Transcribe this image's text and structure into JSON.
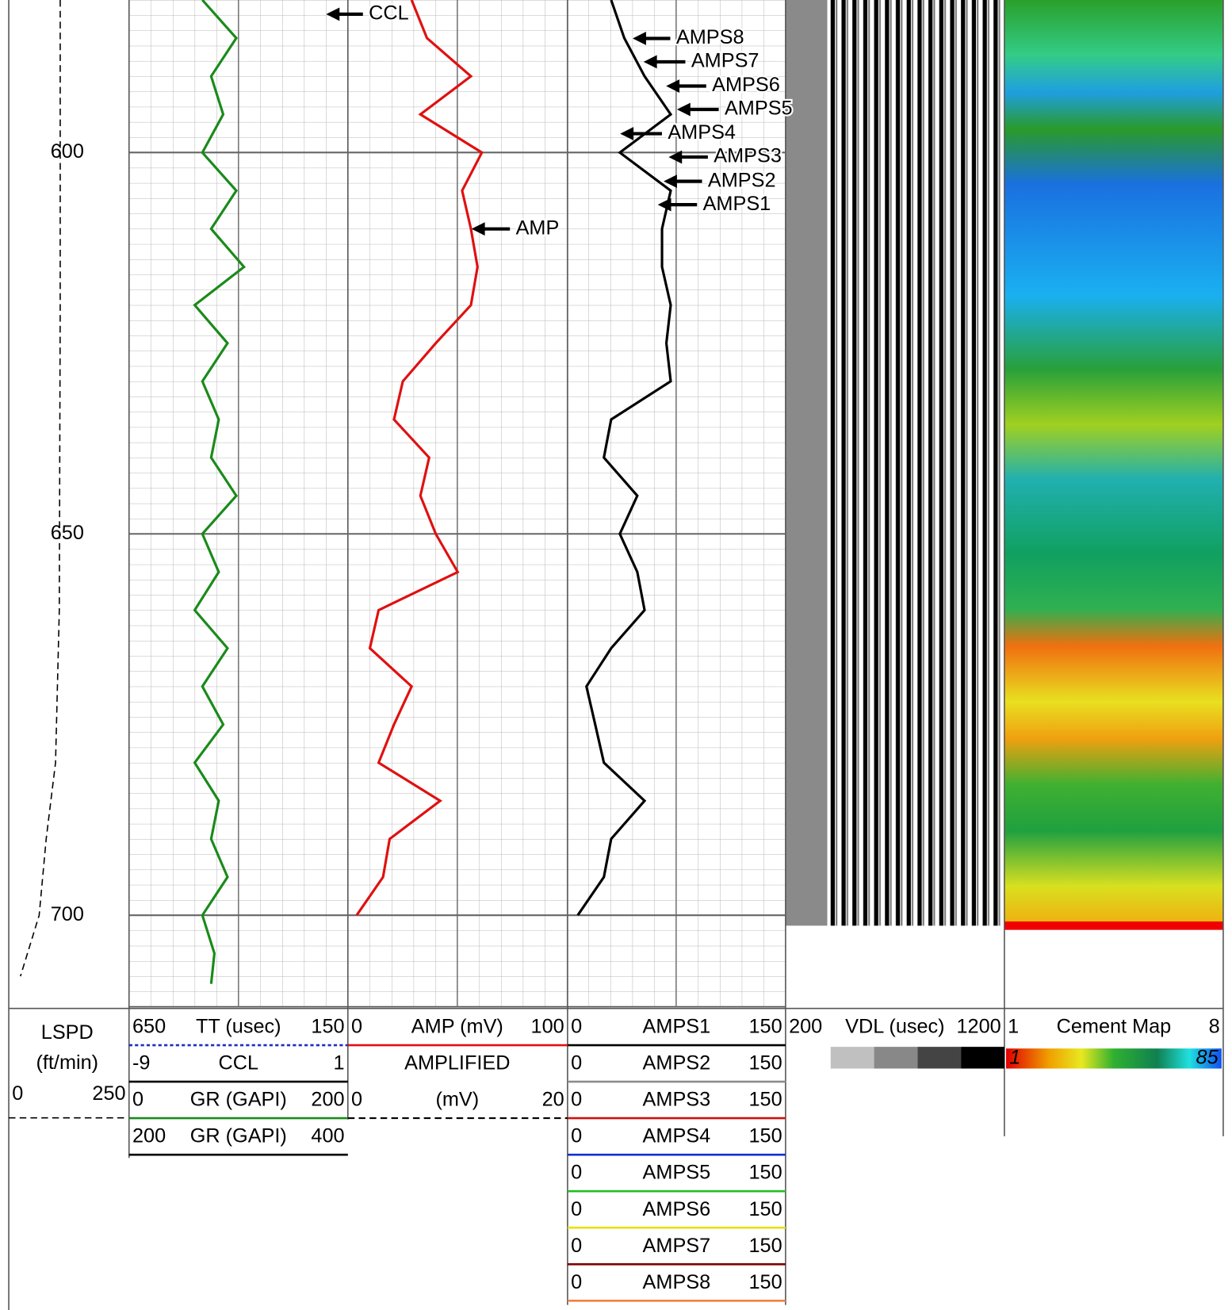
{
  "chart_data": {
    "type": "well-log",
    "depth": {
      "ylim": [
        580,
        712
      ],
      "yticks": [
        600,
        650,
        700
      ]
    },
    "tracks": [
      {
        "scales": [
          {
            "label": "LSPD",
            "unit": "(ft/min)",
            "xlim": [
              0,
              250
            ],
            "color": "#000000",
            "dash": true,
            "depths": [
              580,
              620,
              660,
              680,
              690,
              700,
              708
            ],
            "values": [
              110,
              110,
              108,
              100,
              80,
              65,
              25
            ]
          }
        ]
      },
      {
        "scales": [
          {
            "label": "TT (usec)",
            "xlim": [
              650,
              150
            ],
            "color": "#1f2fbf",
            "dash": true
          },
          {
            "label": "CCL",
            "xlim": [
              -9,
              1
            ],
            "color": "#000000"
          },
          {
            "label": "GR (GAPI)",
            "xlim": [
              0,
              200
            ],
            "color": "#1a8a1a",
            "depths": [
              580,
              585,
              590,
              595,
              600,
              605,
              610,
              615,
              620,
              625,
              630,
              635,
              640,
              645,
              650,
              655,
              660,
              665,
              670,
              675,
              680,
              685,
              690,
              695,
              700,
              705,
              709
            ],
            "values": [
              67,
              98,
              75,
              86,
              67,
              98,
              75,
              105,
              60,
              90,
              67,
              82,
              75,
              98,
              67,
              82,
              60,
              90,
              67,
              86,
              60,
              82,
              75,
              90,
              67,
              78,
              75
            ]
          },
          {
            "label": "GR (GAPI)",
            "xlim": [
              200,
              400
            ],
            "color": "#000000"
          }
        ]
      },
      {
        "scales": [
          {
            "label": "AMP (mV)",
            "xlim": [
              0,
              100
            ],
            "color": "#e01010",
            "depths": [
              580,
              585,
              590,
              595,
              600,
              605,
              610,
              615,
              620,
              625,
              630,
              635,
              640,
              645,
              650,
              655,
              660,
              665,
              670,
              675,
              680,
              685,
              690,
              695,
              700
            ],
            "values": [
              29,
              36,
              56,
              33,
              61,
              52,
              56,
              59,
              56,
              40,
              25,
              21,
              37,
              33,
              40,
              50,
              14,
              10,
              29,
              21,
              14,
              42,
              19,
              16,
              4
            ]
          },
          {
            "label": "AMPLIFIED",
            "unit": "(mV)",
            "xlim": [
              0,
              20
            ],
            "color": "#000000",
            "dash": true
          }
        ]
      },
      {
        "scales": [
          {
            "label": "AMPS1",
            "xlim": [
              0,
              150
            ],
            "color": "#000000",
            "depths": [
              580,
              585,
              590,
              595,
              600,
              605,
              610,
              615,
              620,
              625,
              630,
              635,
              640,
              645,
              650,
              655,
              660,
              665,
              670,
              675,
              680,
              685,
              690,
              695,
              700
            ],
            "values": [
              30,
              39,
              53,
              71,
              36,
              71,
              65,
              65,
              71,
              68,
              71,
              30,
              25,
              48,
              36,
              48,
              53,
              30,
              13,
              19,
              25,
              53,
              30,
              25,
              7
            ]
          },
          {
            "label": "AMPS2",
            "xlim": [
              0,
              150
            ],
            "color": "#8c8c8c"
          },
          {
            "label": "AMPS3",
            "xlim": [
              0,
              150
            ],
            "color": "#d01010"
          },
          {
            "label": "AMPS4",
            "xlim": [
              0,
              150
            ],
            "color": "#1030d0"
          },
          {
            "label": "AMPS5",
            "xlim": [
              0,
              150
            ],
            "color": "#20c020"
          },
          {
            "label": "AMPS6",
            "xlim": [
              0,
              150
            ],
            "color": "#e8e010"
          },
          {
            "label": "AMPS7",
            "xlim": [
              0,
              150
            ],
            "color": "#800000"
          },
          {
            "label": "AMPS8",
            "xlim": [
              0,
              150
            ],
            "color": "#f08040"
          }
        ]
      },
      {
        "scales": [
          {
            "label": "VDL (usec)",
            "xlim": [
              200,
              1200
            ]
          }
        ]
      },
      {
        "scales": [
          {
            "label": "Cement Map",
            "xlim": [
              1,
              8
            ],
            "colorbar": [
              1,
              85
            ]
          }
        ]
      }
    ],
    "annotations": [
      "CCL",
      "AMP",
      "AMPS8",
      "AMPS7",
      "AMPS6",
      "AMPS5",
      "AMPS4",
      "AMPS3",
      "AMPS2",
      "AMPS1"
    ]
  }
}
